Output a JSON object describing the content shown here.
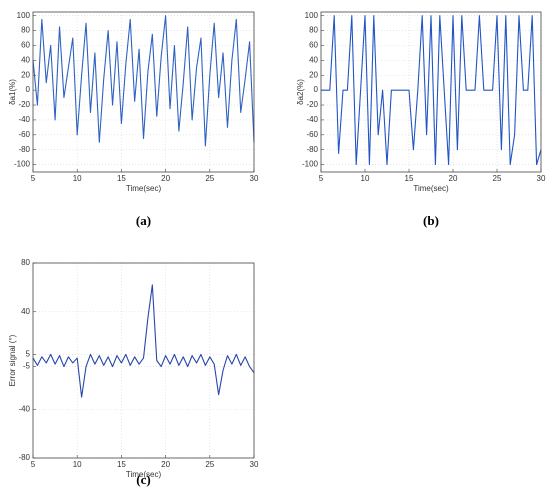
{
  "chart_data": [
    {
      "type": "line",
      "ylabel": "δa1(%)",
      "xlabel": "Time(sec)",
      "caption": "(a)",
      "color": "#2f62c0",
      "grid": true,
      "xlim": [
        5,
        30
      ],
      "xticks": [
        5,
        10,
        15,
        20,
        25,
        30
      ],
      "ylim": [
        -110,
        105
      ],
      "yticks": [
        -100,
        -80,
        -60,
        -40,
        -20,
        0,
        20,
        40,
        60,
        80,
        100
      ],
      "x": [
        5,
        5.5,
        6,
        6.5,
        7,
        7.5,
        8,
        8.5,
        9,
        9.5,
        10,
        10.5,
        11,
        11.5,
        12,
        12.5,
        13,
        13.5,
        14,
        14.5,
        15,
        15.5,
        16,
        16.5,
        17,
        17.5,
        18,
        18.5,
        19,
        19.5,
        20,
        20.5,
        21,
        21.5,
        22,
        22.5,
        23,
        23.5,
        24,
        24.5,
        25,
        25.5,
        26,
        26.5,
        27,
        27.5,
        28,
        28.5,
        29,
        29.5,
        30
      ],
      "values": [
        40,
        -20,
        95,
        10,
        60,
        -40,
        85,
        -10,
        30,
        70,
        -60,
        20,
        90,
        -30,
        50,
        -70,
        15,
        80,
        -20,
        65,
        -45,
        35,
        95,
        -15,
        55,
        -65,
        25,
        75,
        -35,
        45,
        100,
        -25,
        60,
        -55,
        10,
        85,
        -40,
        30,
        70,
        -75,
        20,
        90,
        -10,
        50,
        -50,
        40,
        95,
        -30,
        15,
        65,
        -70
      ]
    },
    {
      "type": "line",
      "ylabel": "δa2(%)",
      "xlabel": "Time(sec)",
      "caption": "(b)",
      "color": "#2255c4",
      "grid": true,
      "xlim": [
        5,
        30
      ],
      "xticks": [
        5,
        10,
        15,
        20,
        25,
        30
      ],
      "ylim": [
        -110,
        105
      ],
      "yticks": [
        -100,
        -80,
        -60,
        -40,
        -20,
        0,
        20,
        40,
        60,
        80,
        100
      ],
      "x": [
        5,
        5.5,
        6,
        6.5,
        7,
        7.5,
        8,
        8.5,
        9,
        9.5,
        10,
        10.5,
        11,
        11.5,
        12,
        12.5,
        13,
        13.5,
        14,
        14.5,
        15,
        15.5,
        16,
        16.5,
        17,
        17.5,
        18,
        18.5,
        19,
        19.5,
        20,
        20.5,
        21,
        21.5,
        22,
        22.5,
        23,
        23.5,
        24,
        24.5,
        25,
        25.5,
        26,
        26.5,
        27,
        27.5,
        28,
        28.5,
        29,
        29.5,
        30
      ],
      "values": [
        0,
        0,
        0,
        100,
        -85,
        0,
        0,
        100,
        -100,
        0,
        100,
        -100,
        100,
        -60,
        0,
        -100,
        0,
        0,
        0,
        0,
        0,
        -80,
        0,
        100,
        -60,
        100,
        -100,
        100,
        0,
        -100,
        100,
        -80,
        100,
        0,
        0,
        0,
        100,
        0,
        0,
        0,
        100,
        -80,
        100,
        -100,
        -60,
        100,
        0,
        0,
        100,
        -100,
        -80
      ]
    },
    {
      "type": "line",
      "ylabel": "Error signal (°)",
      "xlabel": "Time(sec)",
      "caption": "(c)",
      "color": "#2846a8",
      "grid": true,
      "xlim": [
        5,
        30
      ],
      "xticks": [
        5,
        10,
        15,
        20,
        25,
        30
      ],
      "ylim": [
        -80,
        80
      ],
      "yticks": [
        -80,
        -40,
        -5,
        5,
        40,
        80
      ],
      "x": [
        5,
        5.5,
        6,
        6.5,
        7,
        7.5,
        8,
        8.5,
        9,
        9.5,
        10,
        10.5,
        11,
        11.5,
        12,
        12.5,
        13,
        13.5,
        14,
        14.5,
        15,
        15.5,
        16,
        16.5,
        17,
        17.5,
        18,
        18.5,
        19,
        19.5,
        20,
        20.5,
        21,
        21.5,
        22,
        22.5,
        23,
        23.5,
        24,
        24.5,
        25,
        25.5,
        26,
        26.5,
        27,
        27.5,
        28,
        28.5,
        29,
        29.5,
        30
      ],
      "values": [
        2,
        -4,
        3,
        -2,
        5,
        -3,
        4,
        -5,
        3,
        -2,
        2,
        -30,
        -5,
        5,
        -3,
        4,
        -4,
        3,
        -5,
        4,
        -2,
        5,
        -4,
        3,
        -3,
        2,
        35,
        62,
        0,
        -5,
        4,
        -3,
        5,
        -4,
        3,
        -5,
        4,
        -2,
        5,
        -4,
        3,
        -3,
        -28,
        -8,
        4,
        -3,
        5,
        -4,
        3,
        -5,
        -10
      ]
    }
  ]
}
